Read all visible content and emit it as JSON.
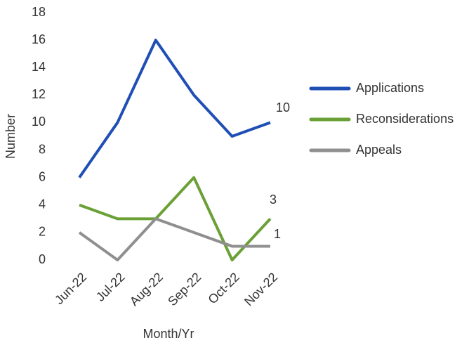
{
  "chart_data": {
    "type": "line",
    "categories": [
      "Jun-22",
      "Jul-22",
      "Aug-22",
      "Sep-22",
      "Oct-22",
      "Nov-22"
    ],
    "series": [
      {
        "name": "Applications",
        "color": "#1f4fb5",
        "values": [
          6,
          10,
          16,
          12,
          9,
          10
        ]
      },
      {
        "name": "Reconsiderations",
        "color": "#6aa035",
        "values": [
          4,
          3,
          3,
          6,
          0,
          3
        ]
      },
      {
        "name": "Appeals",
        "color": "#8f8f8f",
        "values": [
          2,
          0,
          3,
          2,
          1,
          1
        ]
      }
    ],
    "ylim": [
      0,
      18
    ],
    "yticks": [
      0,
      2,
      4,
      6,
      8,
      10,
      12,
      14,
      16,
      18
    ],
    "ylabel": "Number",
    "xlabel": "Month/Yr",
    "grid": false,
    "legend": "right"
  }
}
